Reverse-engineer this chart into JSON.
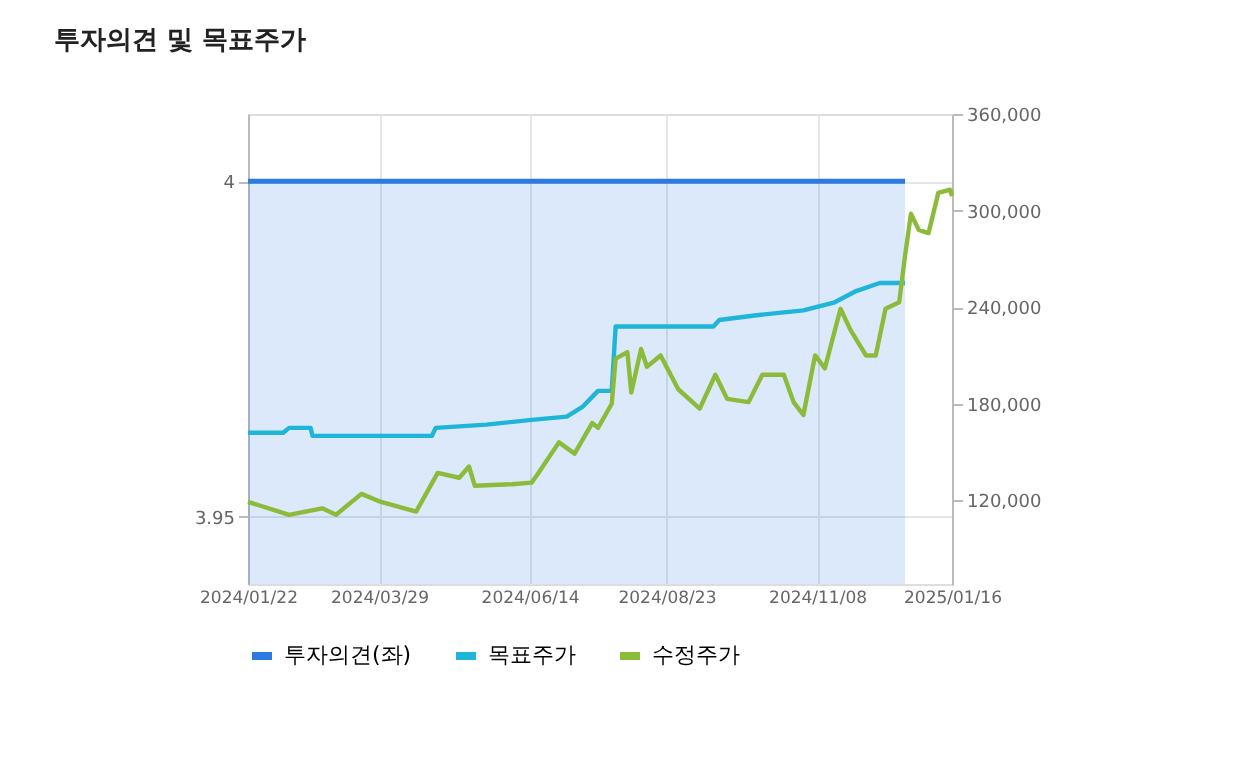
{
  "chart_data": {
    "type": "line",
    "title": "투자의견 및 목표주가",
    "xlim": [
      "2024-01-22",
      "2025-01-16"
    ],
    "xticks": [
      {
        "value": "2024-01-22",
        "label": "2024/01/22"
      },
      {
        "value": "2024-03-29",
        "label": "2024/03/29"
      },
      {
        "value": "2024-06-14",
        "label": "2024/06/14"
      },
      {
        "value": "2024-08-23",
        "label": "2024/08/23"
      },
      {
        "value": "2024-11-08",
        "label": "2024/11/08"
      },
      {
        "value": "2025-01-16",
        "label": "2025/01/16"
      }
    ],
    "ylim": [
      3.94,
      4.01
    ],
    "yticks": [
      3.95,
      4
    ],
    "y2lim": [
      68000,
      360000
    ],
    "y2ticks": [
      {
        "value": 120000,
        "label": "120,000"
      },
      {
        "value": 180000,
        "label": "180,000"
      },
      {
        "value": 240000,
        "label": "240,000"
      },
      {
        "value": 300000,
        "label": "300,000"
      },
      {
        "value": 360000,
        "label": "360,000"
      }
    ],
    "grid": true,
    "legend": "bottom",
    "series": [
      {
        "name": "투자의견(좌)",
        "type": "area",
        "axis": "y",
        "color": "#2b7be0",
        "x": [
          "2024-01-22",
          "2024-12-23"
        ],
        "values": [
          4,
          4
        ]
      },
      {
        "name": "목표주가",
        "axis": "y2",
        "color": "#1fb5d8",
        "x": [
          "2024-01-22",
          "2024-02-09",
          "2024-02-12",
          "2024-02-23",
          "2024-02-24",
          "2024-04-25",
          "2024-04-27",
          "2024-05-23",
          "2024-06-15",
          "2024-07-03",
          "2024-07-11",
          "2024-07-19",
          "2024-07-26",
          "2024-07-28",
          "2024-09-16",
          "2024-09-19",
          "2024-10-08",
          "2024-11-01",
          "2024-11-17",
          "2024-11-28",
          "2024-12-10",
          "2024-12-23"
        ],
        "values": [
          162000,
          162000,
          165000,
          165000,
          160000,
          160000,
          165000,
          167000,
          170000,
          172000,
          178000,
          188000,
          188000,
          228000,
          228000,
          232000,
          235000,
          238000,
          243000,
          250000,
          255000,
          255000
        ]
      },
      {
        "name": "수정주가",
        "axis": "y2",
        "color": "#8cbb3c",
        "x": [
          "2024-01-22",
          "2024-01-30",
          "2024-02-12",
          "2024-02-29",
          "2024-03-07",
          "2024-03-20",
          "2024-03-30",
          "2024-04-17",
          "2024-04-28",
          "2024-05-09",
          "2024-05-14",
          "2024-05-17",
          "2024-06-05",
          "2024-06-15",
          "2024-06-18",
          "2024-06-29",
          "2024-07-07",
          "2024-07-16",
          "2024-07-19",
          "2024-07-26",
          "2024-07-28",
          "2024-08-03",
          "2024-08-05",
          "2024-08-10",
          "2024-08-13",
          "2024-08-20",
          "2024-08-29",
          "2024-09-09",
          "2024-09-17",
          "2024-09-23",
          "2024-10-04",
          "2024-10-11",
          "2024-10-22",
          "2024-10-27",
          "2024-11-01",
          "2024-11-07",
          "2024-11-12",
          "2024-11-20",
          "2024-11-25",
          "2024-12-03",
          "2024-12-08",
          "2024-12-13",
          "2024-12-20",
          "2024-12-23",
          "2024-12-26",
          "2024-12-30",
          "2025-01-04",
          "2025-01-09",
          "2025-01-15",
          "2025-01-16"
        ],
        "values": [
          119000,
          116000,
          111000,
          115000,
          111000,
          124000,
          119000,
          113000,
          137000,
          134000,
          141000,
          129000,
          130000,
          131000,
          136000,
          156000,
          149000,
          168000,
          165000,
          180000,
          208000,
          212000,
          187000,
          214000,
          203000,
          210000,
          189000,
          177000,
          198000,
          183000,
          181000,
          198000,
          198000,
          181000,
          173000,
          210000,
          202000,
          239000,
          226000,
          210000,
          210000,
          239000,
          243000,
          272000,
          298000,
          288000,
          286000,
          311000,
          313000,
          309000
        ]
      }
    ]
  }
}
